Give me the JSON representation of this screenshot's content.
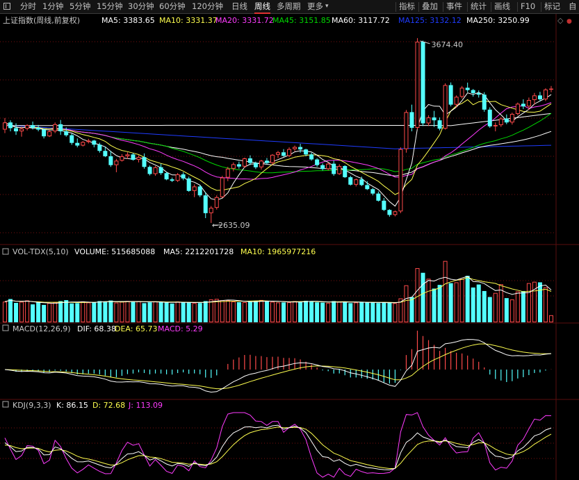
{
  "toolbar": {
    "left_icon": "window-toggle-icon",
    "periods": [
      "分时",
      "1分钟",
      "5分钟",
      "15分钟",
      "30分钟",
      "60分钟",
      "120分钟",
      "日线",
      "周线",
      "多周期",
      "更多"
    ],
    "active_period": "周线",
    "more_arrow": "chevron-down-icon",
    "right_buttons": [
      "指标",
      "叠加",
      "事件",
      "统计",
      "画线",
      "F10",
      "标记"
    ],
    "truncated_label": "自"
  },
  "colors": {
    "up": "#ff4a4a",
    "down": "#54ffff",
    "ma5": "#ffffff",
    "ma10": "#ffff4f",
    "ma20": "#ff3cff",
    "ma45": "#00d900",
    "ma60": "#ffffff",
    "ma125": "#1f3cff",
    "ma250": "#ffffff",
    "grid": "#7a1010"
  },
  "chart_data": [
    {
      "type": "candlestick",
      "panel": "price",
      "title": "上证指数(周线,前复权)",
      "legend": [
        {
          "key": "ma5",
          "label": "MA5:",
          "value": "3383.65",
          "color": "#ffffff"
        },
        {
          "key": "ma10",
          "label": "MA10:",
          "value": "3331.37",
          "color": "#ffff4f"
        },
        {
          "key": "ma20",
          "label": "MA20:",
          "value": "3331.72",
          "color": "#ff3cff"
        },
        {
          "key": "ma45",
          "label": "MA45:",
          "value": "3151.85",
          "color": "#00d900"
        },
        {
          "key": "ma60",
          "label": "MA60:",
          "value": "3117.72",
          "color": "#ffffff"
        },
        {
          "key": "ma125",
          "label": "MA125:",
          "value": "3132.12",
          "color": "#1f3cff"
        },
        {
          "key": "ma250",
          "label": "MA250:",
          "value": "3250.99",
          "color": "#ffffff"
        }
      ],
      "annotations": {
        "high": "3674.40",
        "low": "2635.09"
      },
      "ylim": [
        2580,
        3740
      ],
      "ohlc": [
        [
          3160,
          3225,
          3140,
          3200
        ],
        [
          3200,
          3212,
          3150,
          3168
        ],
        [
          3168,
          3195,
          3130,
          3150
        ],
        [
          3150,
          3175,
          3120,
          3165
        ],
        [
          3165,
          3190,
          3155,
          3185
        ],
        [
          3185,
          3205,
          3160,
          3170
        ],
        [
          3170,
          3186,
          3150,
          3160
        ],
        [
          3160,
          3168,
          3110,
          3122
        ],
        [
          3122,
          3160,
          3118,
          3150
        ],
        [
          3150,
          3200,
          3140,
          3190
        ],
        [
          3190,
          3214,
          3130,
          3150
        ],
        [
          3150,
          3172,
          3120,
          3128
        ],
        [
          3128,
          3138,
          3074,
          3085
        ],
        [
          3085,
          3110,
          3060,
          3070
        ],
        [
          3070,
          3095,
          3065,
          3090
        ],
        [
          3090,
          3108,
          3082,
          3098
        ],
        [
          3098,
          3102,
          3060,
          3075
        ],
        [
          3075,
          3086,
          3030,
          3040
        ],
        [
          3040,
          3064,
          3005,
          3010
        ],
        [
          3010,
          3040,
          2950,
          2960
        ],
        [
          2960,
          2995,
          2920,
          2985
        ],
        [
          2985,
          3022,
          2980,
          3010
        ],
        [
          3010,
          3032,
          2995,
          3020
        ],
        [
          3020,
          3028,
          2985,
          2990
        ],
        [
          2990,
          3015,
          2975,
          3005
        ],
        [
          3005,
          3026,
          2940,
          2950
        ],
        [
          2950,
          2958,
          2902,
          2910
        ],
        [
          2910,
          2955,
          2900,
          2948
        ],
        [
          2948,
          2968,
          2905,
          2915
        ],
        [
          2915,
          2922,
          2875,
          2880
        ],
        [
          2880,
          2890,
          2865,
          2872
        ],
        [
          2872,
          2916,
          2865,
          2908
        ],
        [
          2908,
          2920,
          2875,
          2885
        ],
        [
          2885,
          2895,
          2810,
          2815
        ],
        [
          2815,
          2852,
          2780,
          2840
        ],
        [
          2840,
          2850,
          2780,
          2790
        ],
        [
          2790,
          2808,
          2662,
          2690
        ],
        [
          2690,
          2730,
          2635,
          2720
        ],
        [
          2720,
          2790,
          2710,
          2780
        ],
        [
          2780,
          2900,
          2775,
          2890
        ],
        [
          2890,
          2950,
          2870,
          2940
        ],
        [
          2940,
          2975,
          2925,
          2965
        ],
        [
          2965,
          2980,
          2940,
          2952
        ],
        [
          2952,
          3002,
          2945,
          2998
        ],
        [
          2998,
          3015,
          2960,
          2972
        ],
        [
          2972,
          2980,
          2938,
          2948
        ],
        [
          2948,
          2990,
          2935,
          2985
        ],
        [
          2985,
          3000,
          2965,
          2972
        ],
        [
          2972,
          3022,
          2962,
          3018
        ],
        [
          3018,
          3040,
          3000,
          3032
        ],
        [
          3032,
          3050,
          3008,
          3012
        ],
        [
          3012,
          3060,
          3005,
          3050
        ],
        [
          3050,
          3070,
          3038,
          3062
        ],
        [
          3062,
          3080,
          3030,
          3048
        ],
        [
          3048,
          3052,
          3010,
          3020
        ],
        [
          3020,
          3030,
          2985,
          2992
        ],
        [
          2992,
          2999,
          2950,
          2960
        ],
        [
          2960,
          2970,
          2930,
          2938
        ],
        [
          2938,
          2975,
          2930,
          2968
        ],
        [
          2968,
          2985,
          2900,
          2910
        ],
        [
          2910,
          2965,
          2905,
          2955
        ],
        [
          2955,
          2960,
          2888,
          2892
        ],
        [
          2892,
          2900,
          2845,
          2850
        ],
        [
          2850,
          2885,
          2840,
          2880
        ],
        [
          2880,
          2895,
          2842,
          2848
        ],
        [
          2848,
          2870,
          2820,
          2825
        ],
        [
          2825,
          2832,
          2790,
          2800
        ],
        [
          2800,
          2812,
          2755,
          2760
        ],
        [
          2760,
          2775,
          2702,
          2708
        ],
        [
          2708,
          2712,
          2670,
          2680
        ],
        [
          2680,
          2705,
          2672,
          2700
        ],
        [
          2700,
          3060,
          2690,
          3050
        ],
        [
          3050,
          3270,
          3030,
          3258
        ],
        [
          3258,
          3300,
          3150,
          3170
        ],
        [
          3170,
          3674,
          3160,
          3654
        ],
        [
          3654,
          3660,
          3180,
          3195
        ],
        [
          3195,
          3240,
          3180,
          3228
        ],
        [
          3228,
          3265,
          3175,
          3212
        ],
        [
          3212,
          3228,
          3155,
          3165
        ],
        [
          3165,
          3420,
          3160,
          3410
        ],
        [
          3410,
          3425,
          3290,
          3300
        ],
        [
          3300,
          3352,
          3285,
          3344
        ],
        [
          3344,
          3405,
          3335,
          3395
        ],
        [
          3395,
          3424,
          3370,
          3382
        ],
        [
          3382,
          3388,
          3345,
          3365
        ],
        [
          3365,
          3380,
          3340,
          3356
        ],
        [
          3356,
          3370,
          3260,
          3272
        ],
        [
          3272,
          3285,
          3170,
          3178
        ],
        [
          3178,
          3200,
          3150,
          3185
        ],
        [
          3185,
          3230,
          3175,
          3222
        ],
        [
          3222,
          3245,
          3190,
          3200
        ],
        [
          3200,
          3255,
          3188,
          3248
        ],
        [
          3248,
          3312,
          3240,
          3305
        ],
        [
          3305,
          3330,
          3275,
          3290
        ],
        [
          3290,
          3340,
          3270,
          3326
        ],
        [
          3326,
          3366,
          3300,
          3352
        ],
        [
          3352,
          3372,
          3318,
          3330
        ],
        [
          3330,
          3392,
          3320,
          3385
        ],
        [
          3385,
          3405,
          3370,
          3390
        ]
      ],
      "ma_reference": {
        "ma_last_values_from_legend": [
          3383.65,
          3331.37,
          3331.72,
          3151.85,
          3117.72,
          3132.12,
          3250.99
        ]
      }
    },
    {
      "type": "bar",
      "panel": "volume",
      "title": "VOL-TDX(5,10)",
      "legend": [
        {
          "key": "vol",
          "label": "VOLUME:",
          "value": "515685088",
          "color": "#ffffff"
        },
        {
          "key": "ma5",
          "label": "MA5:",
          "value": "2212201728",
          "color": "#ffffff"
        },
        {
          "key": "ma10",
          "label": "MA10:",
          "value": "1965977216",
          "color": "#ffff4f"
        }
      ],
      "values": [
        1520,
        1710,
        1430,
        1510,
        1610,
        1320,
        1470,
        1280,
        1420,
        1480,
        1560,
        1630,
        1390,
        1410,
        1540,
        1460,
        1490,
        1560,
        1540,
        1600,
        1450,
        1510,
        1570,
        1520,
        1560,
        1410,
        1470,
        1540,
        1490,
        1450,
        1380,
        1530,
        1470,
        1470,
        1420,
        1420,
        1560,
        1680,
        1720,
        1630,
        1610,
        1530,
        1480,
        1480,
        1520,
        1560,
        1640,
        1560,
        1510,
        1460,
        1460,
        1470,
        1560,
        1530,
        1580,
        1560,
        1470,
        1450,
        1420,
        1560,
        1510,
        1520,
        1410,
        1460,
        1510,
        1460,
        1460,
        1420,
        1430,
        1460,
        1410,
        1760,
        2720,
        1860,
        3980,
        3640,
        3200,
        2480,
        2750,
        4510,
        2880,
        2940,
        3190,
        3420,
        2560,
        2780,
        2300,
        1860,
        2160,
        2800,
        1780,
        1680,
        2270,
        2300,
        2880,
        2980,
        2940,
        2580,
        520
      ],
      "ylim": [
        0,
        4800
      ]
    },
    {
      "type": "bar",
      "panel": "macd",
      "title": "MACD(12,26,9)",
      "legend": [
        {
          "key": "dif",
          "label": "DIF:",
          "value": "68.38",
          "color": "#ffffff"
        },
        {
          "key": "dea",
          "label": "DEA:",
          "value": "65.73",
          "color": "#ffff4f"
        },
        {
          "key": "macd",
          "label": "MACD:",
          "value": "5.29",
          "color": "#ff3cff"
        }
      ],
      "ylim": [
        -120,
        120
      ]
    },
    {
      "type": "line",
      "panel": "kdj",
      "title": "KDJ(9,3,3)",
      "legend": [
        {
          "key": "k",
          "label": "K:",
          "value": "86.15",
          "color": "#ffffff"
        },
        {
          "key": "d",
          "label": "D:",
          "value": "72.68",
          "color": "#ffff4f"
        },
        {
          "key": "j",
          "label": "J:",
          "value": "113.09",
          "color": "#ff3cff"
        }
      ],
      "ylim": [
        -10,
        115
      ]
    }
  ]
}
